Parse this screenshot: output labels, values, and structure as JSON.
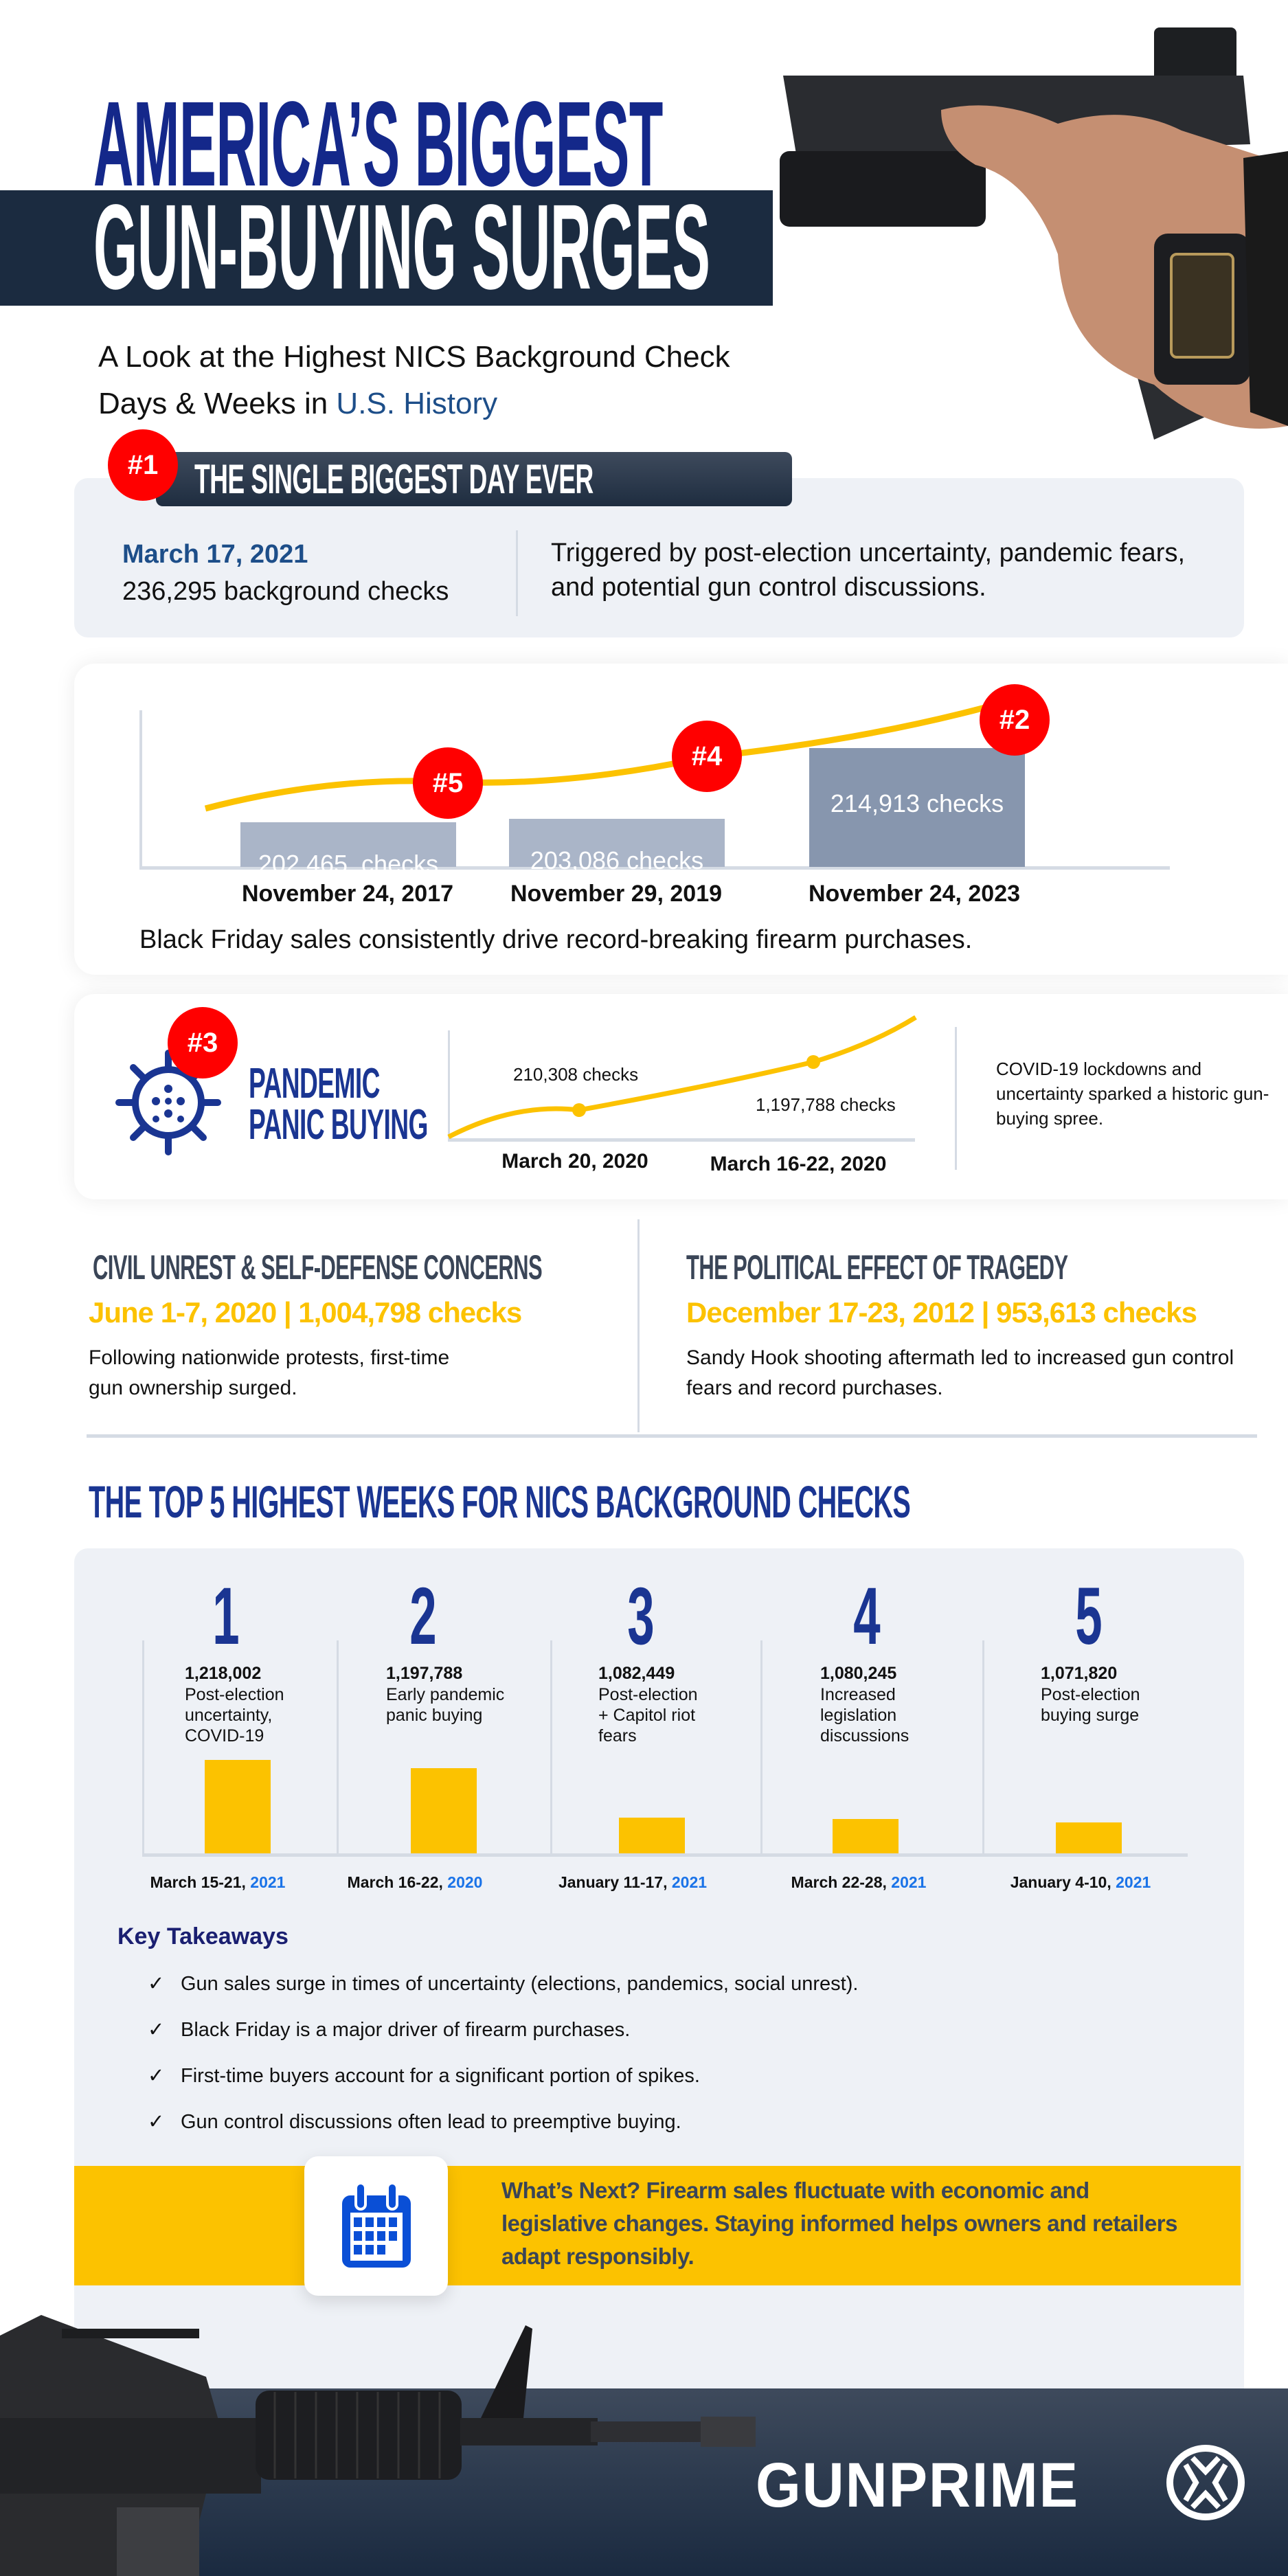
{
  "header": {
    "title_line1": "AMERICA’S BIGGEST",
    "title_line2": "GUN-BUYING SURGES",
    "subtitle_line1": "A Look at the Highest NICS Background Check",
    "subtitle_line2_prefix": "Days & Weeks in ",
    "subtitle_line2_highlight": "U.S. History"
  },
  "biggest_day": {
    "rank": "#1",
    "heading": "THE SINGLE BIGGEST DAY EVER",
    "date": "March 17, 2021",
    "checks": "236,295 background checks",
    "description": "Triggered by post-election uncertainty, pandemic fears, and potential gun control discussions."
  },
  "black_friday": {
    "caption": "Black Friday sales consistently drive record-breaking firearm purchases.",
    "bars": [
      {
        "rank": "#5",
        "label": "202,465  checks",
        "date": "November 24, 2017",
        "value": 202465
      },
      {
        "rank": "#4",
        "label": "203,086 checks",
        "date": "November 29, 2019",
        "value": 203086
      },
      {
        "rank": "#2",
        "label": "214,913 checks",
        "date": "November 24, 2023",
        "value": 214913
      }
    ]
  },
  "pandemic": {
    "rank": "#3",
    "title_line1": "PANDEMIC",
    "title_line2": "PANIC BUYING",
    "point1_label": "210,308 checks",
    "point2_label": "1,197,788 checks",
    "date1": "March 20, 2020",
    "date2": "March 16-22, 2020",
    "description": "COVID-19 lockdowns and uncertainty sparked a historic gun-buying spree."
  },
  "civil_unrest": {
    "heading": "CIVIL UNREST & SELF-DEFENSE CONCERNS",
    "stat": "June 1-7, 2020 | 1,004,798 checks",
    "description": "Following nationwide protests, first-time gun ownership surged."
  },
  "tragedy": {
    "heading": "THE POLITICAL EFFECT OF TRAGEDY",
    "stat": "December 17-23, 2012 | 953,613 checks",
    "description": "Sandy Hook shooting aftermath led to increased gun control fears and record purchases."
  },
  "top5": {
    "title": "THE TOP 5 HIGHEST WEEKS FOR NICS BACKGROUND CHECKS",
    "weeks": [
      {
        "rank": "1",
        "checks": "1,218,002",
        "reason": "Post-election uncertainty, COVID-19",
        "dates": "March 15-21, ",
        "year": "2021",
        "value": 1218002
      },
      {
        "rank": "2",
        "checks": "1,197,788",
        "reason": "Early pandemic panic buying",
        "dates": "March 16-22, ",
        "year": "2020",
        "value": 1197788
      },
      {
        "rank": "3",
        "checks": "1,082,449",
        "reason": "Post-election + Capitol riot fears",
        "dates": "January 11-17, ",
        "year": "2021",
        "value": 1082449
      },
      {
        "rank": "4",
        "checks": "1,080,245",
        "reason": "Increased legislation discussions",
        "dates": "March 22-28, ",
        "year": "2021",
        "value": 1080245
      },
      {
        "rank": "5",
        "checks": "1,071,820",
        "reason": "Post-election buying surge",
        "dates": "January 4-10, ",
        "year": "2021",
        "value": 1071820
      }
    ]
  },
  "takeaways": {
    "title": "Key Takeaways",
    "items": [
      "Gun sales surge in times of uncertainty (elections, pandemics, social unrest).",
      "Black Friday is a major driver of firearm purchases.",
      "First-time buyers account for a significant portion of spikes.",
      "Gun control discussions often lead to preemptive buying."
    ],
    "check_icon": "✓"
  },
  "whats_next": {
    "icon": "calendar-icon",
    "text": "What’s Next? Firearm sales fluctuate with economic and legislative changes. Staying informed helps owners and retailers adapt responsibly."
  },
  "footer": {
    "brand": "GUNPRIME"
  },
  "colors": {
    "navy": "#1b2b40",
    "accent_blue": "#1a3592",
    "yellow": "#fcc200",
    "red": "#ff0000",
    "panel": "#eef1f6"
  }
}
